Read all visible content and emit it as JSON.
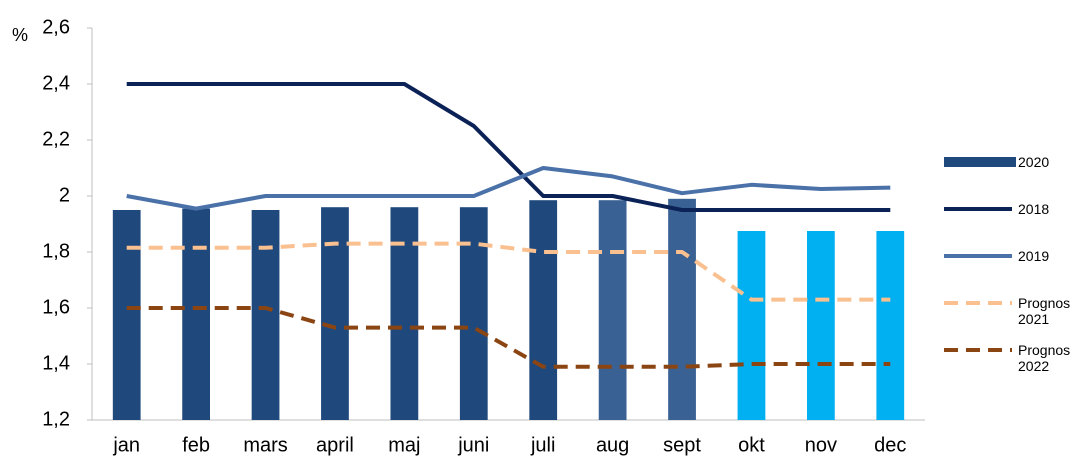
{
  "chart_data": {
    "type": "bar",
    "y_label": "%",
    "categories": [
      "jan",
      "feb",
      "mars",
      "april",
      "maj",
      "juni",
      "juli",
      "aug",
      "sept",
      "okt",
      "nov",
      "dec"
    ],
    "series": [
      {
        "name": "2020",
        "type": "bar",
        "color": "#1f497d",
        "colors": [
          "#1f497d",
          "#1f497d",
          "#1f497d",
          "#1f497d",
          "#1f497d",
          "#1f497d",
          "#1f497d",
          "#3a6194",
          "#3a6194",
          "#00b0f0",
          "#00b0f0",
          "#00b0f0"
        ],
        "values": [
          1.95,
          1.955,
          1.95,
          1.96,
          1.96,
          1.96,
          1.985,
          1.985,
          1.99,
          1.875,
          1.875,
          1.875
        ]
      },
      {
        "name": "2018",
        "type": "line",
        "color": "#0b2257",
        "dashed": false,
        "values": [
          2.4,
          2.4,
          2.4,
          2.4,
          2.4,
          2.25,
          2.0,
          2.0,
          1.95,
          1.95,
          1.95,
          1.95
        ]
      },
      {
        "name": "2019",
        "type": "line",
        "color": "#4a71a8",
        "dashed": false,
        "values": [
          2.0,
          1.955,
          2.0,
          2.0,
          2.0,
          2.0,
          2.1,
          2.07,
          2.01,
          2.04,
          2.025,
          2.03
        ]
      },
      {
        "name": "Prognos 2021",
        "type": "line",
        "color": "#fac090",
        "dashed": true,
        "values": [
          1.815,
          1.815,
          1.815,
          1.83,
          1.83,
          1.83,
          1.8,
          1.8,
          1.8,
          1.63,
          1.63,
          1.63
        ]
      },
      {
        "name": "Prognos 2022",
        "type": "line",
        "color": "#8b4513",
        "dashed": true,
        "values": [
          1.6,
          1.6,
          1.6,
          1.53,
          1.53,
          1.53,
          1.39,
          1.39,
          1.39,
          1.4,
          1.4,
          1.4
        ]
      }
    ],
    "ylim": [
      1.2,
      2.6
    ],
    "yticks": [
      {
        "value": 1.2,
        "label": "1,2"
      },
      {
        "value": 1.4,
        "label": "1,4"
      },
      {
        "value": 1.6,
        "label": "1,6"
      },
      {
        "value": 1.8,
        "label": "1,8"
      },
      2,
      {
        "value": 2.2,
        "label": "2,2"
      },
      {
        "value": 2.4,
        "label": "2,4"
      },
      {
        "value": 2.6,
        "label": "2,6"
      }
    ],
    "grid": false,
    "legend_position": "right"
  }
}
